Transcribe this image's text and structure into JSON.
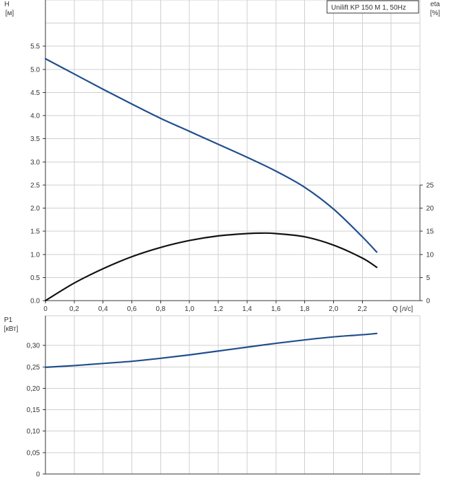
{
  "chart_data": [
    {
      "type": "line",
      "panel": "head-efficiency",
      "legend": "Unilift KP 150 M 1, 50Hz",
      "legend_position": "top-right",
      "grid": true,
      "x_label": "Q [л/с]",
      "x_label_unit": "[л/с]",
      "x_label_name": "Q",
      "x_ticks": [
        "0",
        "0,2",
        "0,4",
        "0,6",
        "0,8",
        "1,0",
        "1,2",
        "1,4",
        "1,6",
        "1,8",
        "2,0",
        "2,2"
      ],
      "x_grid": [
        0,
        0.2,
        0.4,
        0.6,
        0.8,
        1.0,
        1.2,
        1.4,
        1.6,
        1.8,
        2.0,
        2.2,
        2.4,
        2.6
      ],
      "xlim": [
        0,
        2.6
      ],
      "y_left_label": "H",
      "y_left_unit": "[м]",
      "y_left_ticks": [
        "0.0",
        "0.5",
        "1.0",
        "1.5",
        "2.0",
        "2.5",
        "3.0",
        "3.5",
        "4.0",
        "4.5",
        "5.0",
        "5.5"
      ],
      "y_left_lim": [
        0,
        6.5
      ],
      "y_right_label": "eta",
      "y_right_unit": "[%]",
      "y_right_ticks": [
        "0",
        "5",
        "10",
        "15",
        "20",
        "25"
      ],
      "y_right_lim": [
        0,
        65
      ],
      "series": [
        {
          "axis": "left",
          "color": "#1f4e8c",
          "x": [
            0,
            0.2,
            0.4,
            0.6,
            0.8,
            1.0,
            1.2,
            1.4,
            1.6,
            1.8,
            2.0,
            2.2,
            2.3
          ],
          "y": [
            5.23,
            4.9,
            4.57,
            4.25,
            3.94,
            3.66,
            3.38,
            3.1,
            2.8,
            2.45,
            1.98,
            1.38,
            1.05
          ]
        },
        {
          "axis": "right",
          "color": "#111111",
          "x": [
            0,
            0.2,
            0.4,
            0.6,
            0.8,
            1.0,
            1.2,
            1.4,
            1.5,
            1.6,
            1.8,
            2.0,
            2.2,
            2.3
          ],
          "y": [
            0,
            3.8,
            6.9,
            9.5,
            11.5,
            13.0,
            14.0,
            14.5,
            14.6,
            14.5,
            13.8,
            12.0,
            9.2,
            7.2
          ]
        }
      ]
    },
    {
      "type": "line",
      "panel": "power",
      "grid": true,
      "xlim": [
        0,
        2.6
      ],
      "x_grid": [
        0,
        0.2,
        0.4,
        0.6,
        0.8,
        1.0,
        1.2,
        1.4,
        1.6,
        1.8,
        2.0,
        2.2,
        2.4,
        2.6
      ],
      "y_label": "P1",
      "y_unit": "[кВт]",
      "y_ticks": [
        "0",
        "0,05",
        "0,10",
        "0,15",
        "0,20",
        "0,25",
        "0,30"
      ],
      "ylim": [
        0,
        0.35
      ],
      "series": [
        {
          "color": "#1f4e8c",
          "x": [
            0,
            0.2,
            0.4,
            0.6,
            0.8,
            1.0,
            1.2,
            1.4,
            1.6,
            1.8,
            2.0,
            2.2,
            2.3
          ],
          "y": [
            0.249,
            0.253,
            0.258,
            0.263,
            0.27,
            0.278,
            0.287,
            0.296,
            0.305,
            0.313,
            0.32,
            0.325,
            0.328
          ]
        }
      ]
    }
  ]
}
